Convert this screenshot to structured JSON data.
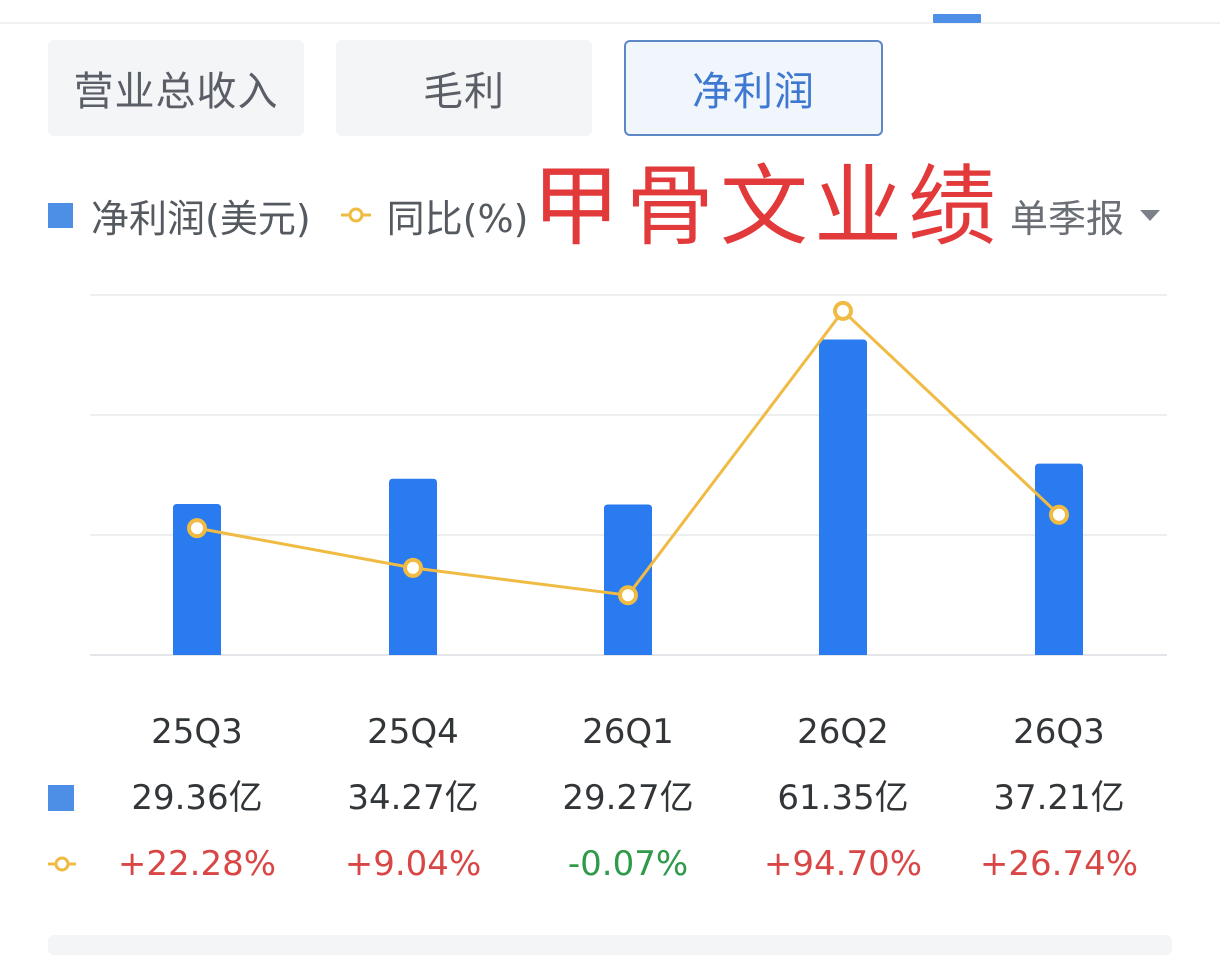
{
  "tabs": [
    {
      "label": "营业总收入",
      "active": false
    },
    {
      "label": "毛利",
      "active": false
    },
    {
      "label": "净利润",
      "active": true
    }
  ],
  "legend": {
    "bar_label": "净利润(美元)",
    "line_label": "同比(%)"
  },
  "watermark": "甲骨文业绩",
  "period_select": {
    "label": "单季报"
  },
  "colors": {
    "bar": "#2a7af0",
    "line": "#f0bb43",
    "positive": "#d94646",
    "negative": "#2e9a4a",
    "active_tab_border": "#5e87c5",
    "active_tab_text": "#3e78d0"
  },
  "chart_data": {
    "type": "bar",
    "categories": [
      "25Q3",
      "25Q4",
      "26Q1",
      "26Q2",
      "26Q3"
    ],
    "series": [
      {
        "name": "净利润(美元)",
        "kind": "bar",
        "values": [
          29.36,
          34.27,
          29.27,
          61.35,
          37.21
        ],
        "unit": "亿"
      },
      {
        "name": "同比(%)",
        "kind": "line",
        "values": [
          22.28,
          9.04,
          -0.07,
          94.7,
          26.74
        ],
        "unit": "%"
      }
    ],
    "value_labels": [
      "29.36亿",
      "34.27亿",
      "29.27亿",
      "61.35亿",
      "37.21亿"
    ],
    "pct_labels": [
      "+22.28%",
      "+9.04%",
      "-0.07%",
      "+94.70%",
      "+26.74%"
    ],
    "ylim_bar": [
      0,
      70
    ],
    "ylim_line": [
      -20,
      100
    ],
    "grid": true,
    "legend": "top-left"
  }
}
